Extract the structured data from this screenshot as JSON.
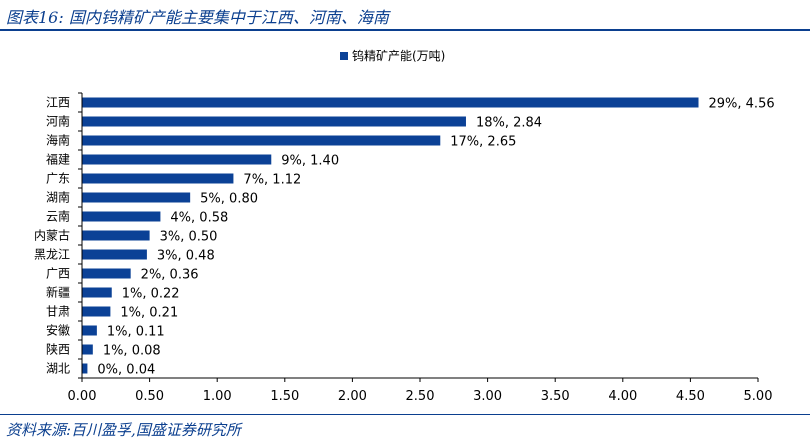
{
  "header": {
    "figure_label": "图表16:",
    "title": "国内钨精矿产能主要集中于江西、河南、海南"
  },
  "footer": {
    "source": "资料来源:百川盈孚,国盛证券研究所"
  },
  "colors": {
    "bar": "#0b4196",
    "accent": "#0b3f8f"
  },
  "chart_data": {
    "type": "bar",
    "orientation": "horizontal",
    "title": "",
    "legend": "top-center",
    "series": [
      {
        "name": "钨精矿产能(万吨)",
        "values": [
          4.56,
          2.84,
          2.65,
          1.4,
          1.12,
          0.8,
          0.58,
          0.5,
          0.48,
          0.36,
          0.22,
          0.21,
          0.11,
          0.08,
          0.04
        ]
      }
    ],
    "categories": [
      "江西",
      "河南",
      "海南",
      "福建",
      "广东",
      "湖南",
      "云南",
      "内蒙古",
      "黑龙江",
      "广西",
      "新疆",
      "甘肃",
      "安徽",
      "陕西",
      "湖北"
    ],
    "data_labels": [
      "29%, 4.56",
      "18%, 2.84",
      "17%, 2.65",
      "9%, 1.40",
      "7%, 1.12",
      "5%, 0.80",
      "4%, 0.58",
      "3%, 0.50",
      "3%, 0.48",
      "2%, 0.36",
      "1%, 0.22",
      "1%, 0.21",
      "1%, 0.11",
      "1%, 0.08",
      "0%, 0.04"
    ],
    "xlabel": "",
    "ylabel": "",
    "xlim": [
      0,
      5
    ],
    "xticks": [
      "0.00",
      "0.50",
      "1.00",
      "1.50",
      "2.00",
      "2.50",
      "3.00",
      "3.50",
      "4.00",
      "4.50",
      "5.00"
    ],
    "grid": false
  }
}
